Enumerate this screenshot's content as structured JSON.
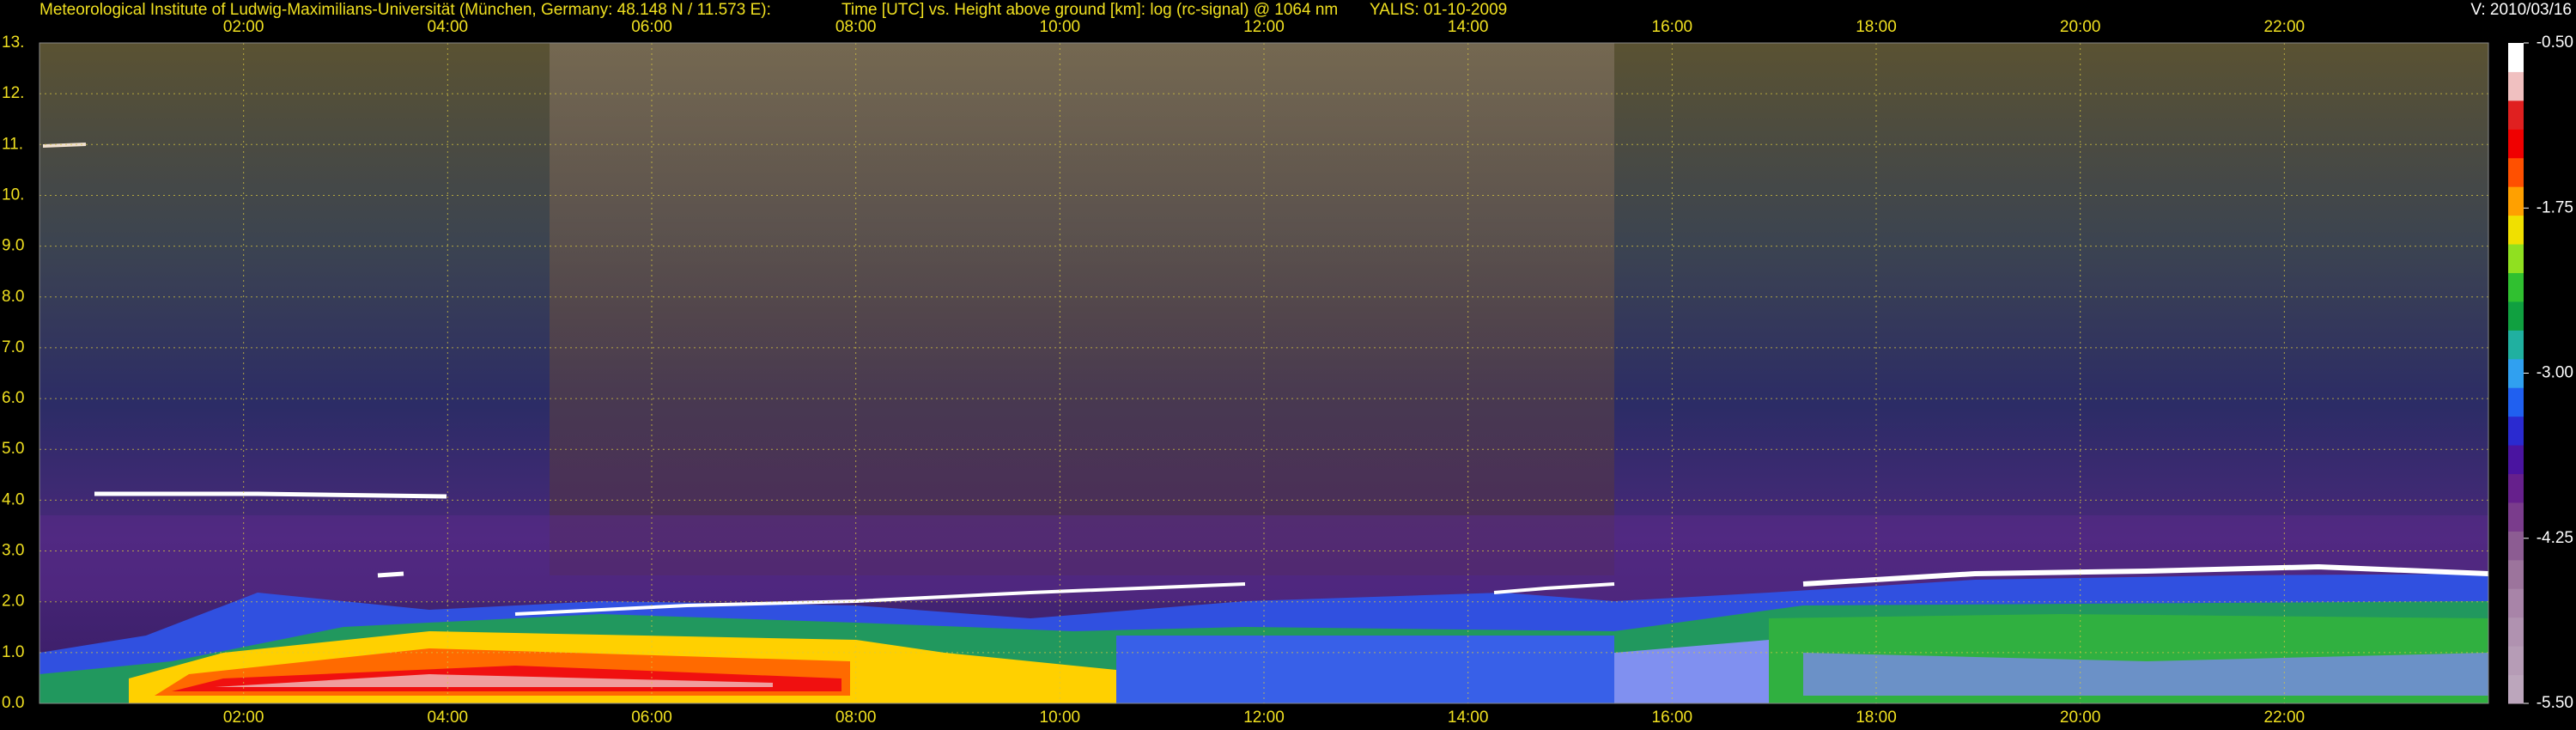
{
  "chart_data": {
    "type": "heatmap",
    "header": "Meteorological Institute of Ludwig-Maximilians-Universität (München, Germany: 48.148 N / 11.573 E):",
    "title": "Time [UTC] vs. Height above ground [km]: log (rc-signal) @ 1064 nm",
    "instrument": "YALIS: 01-10-2009",
    "version": "V: 2010/03/16",
    "xlim": [
      0,
      24
    ],
    "xticks": [
      {
        "value": 2,
        "label": "02:00"
      },
      {
        "value": 4,
        "label": "04:00"
      },
      {
        "value": 6,
        "label": "06:00"
      },
      {
        "value": 8,
        "label": "08:00"
      },
      {
        "value": 10,
        "label": "10:00"
      },
      {
        "value": 12,
        "label": "12:00"
      },
      {
        "value": 14,
        "label": "14:00"
      },
      {
        "value": 16,
        "label": "16:00"
      },
      {
        "value": 18,
        "label": "18:00"
      },
      {
        "value": 20,
        "label": "20:00"
      },
      {
        "value": 22,
        "label": "22:00"
      }
    ],
    "ylim": [
      0,
      13
    ],
    "yticks": [
      {
        "value": 0,
        "label": "0.0"
      },
      {
        "value": 1,
        "label": "1.0"
      },
      {
        "value": 2,
        "label": "2.0"
      },
      {
        "value": 3,
        "label": "3.0"
      },
      {
        "value": 4,
        "label": "4.0"
      },
      {
        "value": 5,
        "label": "5.0"
      },
      {
        "value": 6,
        "label": "6.0"
      },
      {
        "value": 7,
        "label": "7.0"
      },
      {
        "value": 8,
        "label": "8.0"
      },
      {
        "value": 9,
        "label": "9.0"
      },
      {
        "value": 10,
        "label": "10."
      },
      {
        "value": 11,
        "label": "11."
      },
      {
        "value": 12,
        "label": "12."
      },
      {
        "value": 13,
        "label": "13."
      }
    ],
    "grid": true,
    "colorbar": {
      "lim": [
        -5.5,
        -0.5
      ],
      "ticks": [
        {
          "value": -0.5,
          "label": "-0.50"
        },
        {
          "value": -1.75,
          "label": "-1.75"
        },
        {
          "value": -3.0,
          "label": "-3.00"
        },
        {
          "value": -4.25,
          "label": "-4.25"
        },
        {
          "value": -5.5,
          "label": "-5.50"
        }
      ],
      "colors": [
        "#bca6bc",
        "#b69cb6",
        "#b092b0",
        "#a884a8",
        "#9c749c",
        "#8c5c92",
        "#7a3c8c",
        "#66208c",
        "#4a14a0",
        "#2a2ad0",
        "#2060f0",
        "#30a0f0",
        "#20b0a0",
        "#10a040",
        "#30c030",
        "#90e020",
        "#f0e000",
        "#ffa000",
        "#ff5000",
        "#f00000",
        "#e02020",
        "#f0c0c0",
        "#ffffff"
      ]
    }
  }
}
